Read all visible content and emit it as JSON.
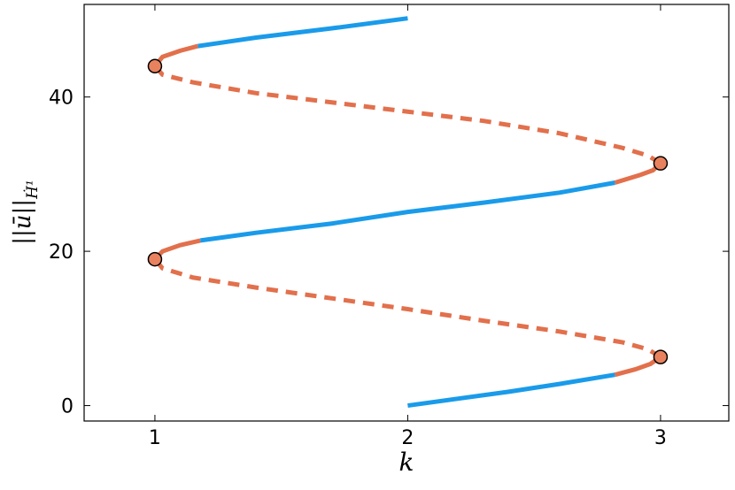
{
  "chart_data": {
    "type": "line",
    "xlabel": "k",
    "ylabel": "||ū||",
    "ylabel_subscript": "Ḣ¹",
    "xlim": [
      0.72,
      3.27
    ],
    "ylim": [
      -2,
      52
    ],
    "xticks": [
      1,
      2,
      3
    ],
    "yticks": [
      0,
      20,
      40
    ],
    "series": [
      {
        "style": "solid",
        "color": "#1a9bea",
        "x": [
          2,
          2.2,
          2.4,
          2.6,
          2.82
        ],
        "values": [
          0,
          0.9,
          1.8,
          2.8,
          4.0
        ]
      },
      {
        "style": "solid",
        "color": "#e2704c",
        "x": [
          2.82,
          2.9,
          2.96,
          3
        ],
        "values": [
          4.0,
          4.7,
          5.4,
          6.3
        ]
      },
      {
        "style": "dashed",
        "color": "#e2704c",
        "x": [
          3,
          2.95,
          2.85,
          2.6,
          2.3,
          2,
          1.7,
          1.4,
          1.15,
          1.03,
          1
        ],
        "values": [
          6.3,
          7.3,
          8.2,
          9.6,
          11.0,
          12.5,
          13.9,
          15.3,
          16.6,
          17.8,
          18.97
        ]
      },
      {
        "style": "solid",
        "color": "#e2704c",
        "x": [
          1,
          1.03,
          1.1,
          1.18
        ],
        "values": [
          18.97,
          20.0,
          20.8,
          21.4
        ]
      },
      {
        "style": "solid",
        "color": "#1a9bea",
        "x": [
          1.18,
          1.4,
          1.7,
          2,
          2.3,
          2.6,
          2.82
        ],
        "values": [
          21.4,
          22.4,
          23.6,
          25.1,
          26.3,
          27.6,
          28.9
        ]
      },
      {
        "style": "solid",
        "color": "#e2704c",
        "x": [
          2.82,
          2.92,
          2.97,
          3
        ],
        "values": [
          28.9,
          29.9,
          30.5,
          31.4
        ]
      },
      {
        "style": "dashed",
        "color": "#e2704c",
        "x": [
          3,
          2.95,
          2.85,
          2.6,
          2.3,
          2,
          1.7,
          1.4,
          1.15,
          1.03,
          1
        ],
        "values": [
          31.4,
          32.4,
          33.4,
          35.3,
          36.9,
          38.1,
          39.3,
          40.5,
          41.9,
          42.9,
          44
        ]
      },
      {
        "style": "solid",
        "color": "#e2704c",
        "x": [
          1,
          1.03,
          1.1,
          1.17
        ],
        "values": [
          44,
          45.2,
          46.0,
          46.6
        ]
      },
      {
        "style": "solid",
        "color": "#1a9bea",
        "x": [
          1.17,
          1.4,
          1.7,
          2
        ],
        "values": [
          46.6,
          47.7,
          48.9,
          50.2
        ]
      }
    ],
    "markers": {
      "color": "#e8825e",
      "x": [
        3,
        1,
        3,
        1
      ],
      "values": [
        6.3,
        18.97,
        31.4,
        44
      ]
    }
  }
}
